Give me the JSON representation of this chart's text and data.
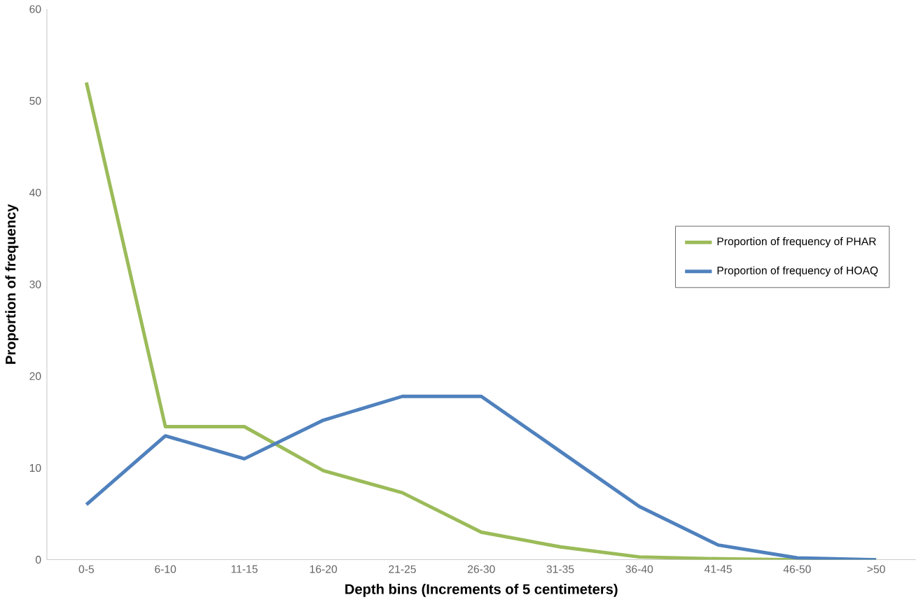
{
  "chart_data": {
    "type": "line",
    "xlabel": "Depth bins (Increments of 5 centimeters)",
    "ylabel": "Proportion of frequency",
    "categories": [
      "0-5",
      "6-10",
      "11-15",
      "16-20",
      "21-25",
      "26-30",
      "31-35",
      "36-40",
      "41-45",
      "46-50",
      ">50"
    ],
    "series": [
      {
        "name": "Proportion of frequency of PHAR",
        "color": "#9bbb59",
        "values": [
          52,
          14.5,
          14.5,
          9.7,
          7.3,
          3,
          1.4,
          0.3,
          0.1,
          0,
          0
        ]
      },
      {
        "name": "Proportion of frequency of HOAQ",
        "color": "#4f81bd",
        "values": [
          6,
          13.5,
          11,
          15.2,
          17.8,
          17.8,
          11.8,
          5.8,
          1.6,
          0.2,
          0
        ]
      }
    ],
    "ylim": [
      0,
      60
    ],
    "yticks": [
      0,
      10,
      20,
      30,
      40,
      50,
      60
    ],
    "grid": false,
    "legend": "right",
    "marker": "none",
    "line_style": "solid"
  }
}
